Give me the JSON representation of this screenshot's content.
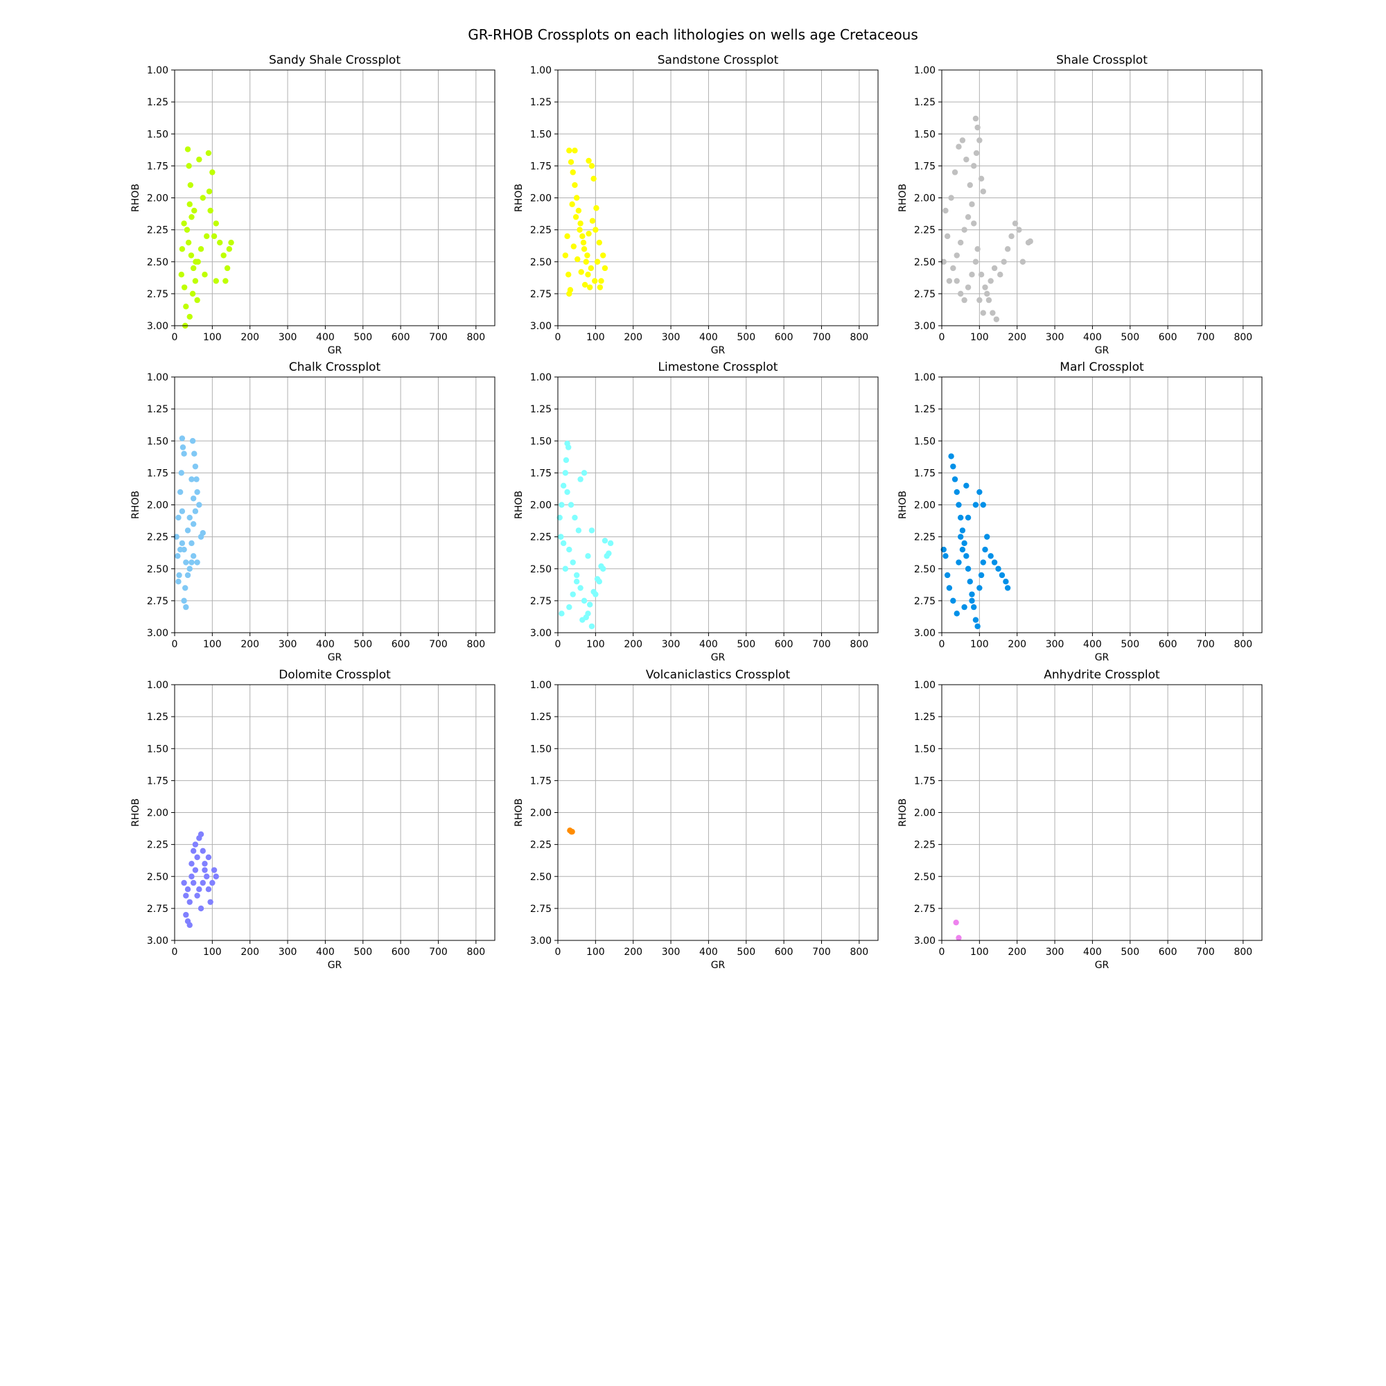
{
  "figure": {
    "title": "GR-RHOB Crossplots on each lithologies on wells age Cretaceous"
  },
  "axes_common": {
    "xlabel": "GR",
    "ylabel": "RHOB",
    "xlim": [
      0,
      850
    ],
    "ylim": [
      3.0,
      1.0
    ],
    "y_inverted": true,
    "xticks": [
      "0",
      "100",
      "200",
      "300",
      "400",
      "500",
      "600",
      "700",
      "800"
    ],
    "yticks": [
      "1.00",
      "1.25",
      "1.50",
      "1.75",
      "2.00",
      "2.25",
      "2.50",
      "2.75",
      "3.00"
    ],
    "grid": true
  },
  "chart_data": [
    {
      "type": "scatter",
      "title": "Sandy Shale Crossplot",
      "xlabel": "GR",
      "ylabel": "RHOB",
      "xlim": [
        0,
        850
      ],
      "ylim": [
        3.0,
        1.0
      ],
      "color": "#BFFF00",
      "x": [
        35,
        38,
        42,
        40,
        45,
        33,
        37,
        44,
        50,
        55,
        48,
        30,
        28,
        62,
        70,
        85,
        90,
        100,
        92,
        95,
        110,
        120,
        130,
        140,
        145,
        135,
        150,
        25,
        20,
        18,
        26,
        40,
        65,
        75,
        80,
        60,
        110,
        52,
        56,
        105
      ],
      "y": [
        1.62,
        1.75,
        1.9,
        2.05,
        2.15,
        2.25,
        2.35,
        2.45,
        2.55,
        2.65,
        2.75,
        2.85,
        3.0,
        2.5,
        2.4,
        2.3,
        1.65,
        1.8,
        1.95,
        2.1,
        2.2,
        2.35,
        2.45,
        2.55,
        2.4,
        2.65,
        2.35,
        2.2,
        2.4,
        2.6,
        2.7,
        2.93,
        1.7,
        2.0,
        2.6,
        2.8,
        2.65,
        2.1,
        2.5,
        2.3
      ]
    },
    {
      "type": "scatter",
      "title": "Sandstone Crossplot",
      "xlabel": "GR",
      "ylabel": "RHOB",
      "xlim": [
        0,
        850
      ],
      "ylim": [
        3.0,
        1.0
      ],
      "color": "#FFFF00",
      "x": [
        30,
        35,
        40,
        45,
        50,
        55,
        60,
        65,
        70,
        75,
        80,
        85,
        90,
        95,
        100,
        110,
        120,
        125,
        115,
        105,
        25,
        20,
        28,
        33,
        38,
        48,
        58,
        68,
        78,
        88,
        98,
        30,
        42,
        52,
        62,
        72,
        82,
        92,
        102,
        112,
        45,
        82
      ],
      "y": [
        1.63,
        1.72,
        1.8,
        1.9,
        2.0,
        2.1,
        2.2,
        2.3,
        2.4,
        2.5,
        2.6,
        2.7,
        1.75,
        1.85,
        2.25,
        2.35,
        2.45,
        2.55,
        2.65,
        2.5,
        2.3,
        2.45,
        2.6,
        2.72,
        2.05,
        2.15,
        2.25,
        2.35,
        2.45,
        2.55,
        2.65,
        2.75,
        2.38,
        2.48,
        2.58,
        2.68,
        2.28,
        2.18,
        2.08,
        2.7,
        1.63,
        1.71
      ]
    },
    {
      "type": "scatter",
      "title": "Shale Crossplot",
      "xlabel": "GR",
      "ylabel": "RHOB",
      "xlim": [
        0,
        850
      ],
      "ylim": [
        3.0,
        1.0
      ],
      "color": "#C0C0C0",
      "x": [
        90,
        95,
        100,
        92,
        85,
        105,
        110,
        80,
        70,
        60,
        50,
        40,
        30,
        20,
        10,
        5,
        15,
        25,
        35,
        45,
        55,
        65,
        75,
        85,
        95,
        105,
        115,
        125,
        135,
        145,
        155,
        165,
        175,
        185,
        195,
        205,
        215,
        230,
        235,
        100,
        110,
        120,
        130,
        140,
        90,
        80,
        70,
        60,
        50,
        40
      ],
      "y": [
        1.38,
        1.45,
        1.55,
        1.65,
        1.75,
        1.85,
        1.95,
        2.05,
        2.15,
        2.25,
        2.35,
        2.45,
        2.55,
        2.65,
        2.1,
        2.5,
        2.3,
        2.0,
        1.8,
        1.6,
        1.55,
        1.7,
        1.9,
        2.2,
        2.4,
        2.6,
        2.7,
        2.8,
        2.9,
        2.95,
        2.6,
        2.5,
        2.4,
        2.3,
        2.2,
        2.25,
        2.5,
        2.35,
        2.34,
        2.8,
        2.9,
        2.75,
        2.65,
        2.55,
        2.5,
        2.6,
        2.7,
        2.8,
        2.75,
        2.65
      ]
    },
    {
      "type": "scatter",
      "title": "Chalk Crossplot",
      "xlabel": "GR",
      "ylabel": "RHOB",
      "xlim": [
        0,
        850
      ],
      "ylim": [
        3.0,
        1.0
      ],
      "color": "#80C8F5",
      "x": [
        20,
        22,
        25,
        18,
        15,
        10,
        5,
        8,
        12,
        28,
        30,
        35,
        40,
        45,
        50,
        48,
        52,
        55,
        58,
        60,
        65,
        70,
        75,
        20,
        25,
        30,
        35,
        40,
        45,
        50,
        55,
        15,
        10,
        20,
        45,
        50,
        25,
        60
      ],
      "y": [
        1.48,
        1.55,
        1.6,
        1.75,
        1.9,
        2.1,
        2.25,
        2.4,
        2.55,
        2.65,
        2.8,
        2.2,
        2.1,
        2.3,
        2.4,
        1.5,
        1.6,
        1.7,
        1.8,
        1.9,
        2.0,
        2.25,
        2.22,
        2.3,
        2.35,
        2.45,
        2.55,
        2.5,
        2.45,
        2.15,
        2.05,
        2.35,
        2.6,
        2.05,
        1.8,
        1.95,
        2.75,
        2.45
      ]
    },
    {
      "type": "scatter",
      "title": "Limestone Crossplot",
      "xlabel": "GR",
      "ylabel": "RHOB",
      "xlim": [
        0,
        850
      ],
      "ylim": [
        3.0,
        1.0
      ],
      "color": "#80FFFF",
      "x": [
        25,
        28,
        22,
        20,
        15,
        10,
        5,
        8,
        30,
        40,
        50,
        60,
        70,
        80,
        90,
        100,
        110,
        120,
        130,
        140,
        135,
        125,
        115,
        105,
        95,
        85,
        75,
        65,
        55,
        45,
        35,
        25,
        15,
        10,
        60,
        70,
        80,
        50,
        40,
        30,
        20,
        90
      ],
      "y": [
        1.52,
        1.55,
        1.65,
        1.75,
        1.85,
        2.0,
        2.1,
        2.25,
        2.35,
        2.45,
        2.55,
        2.65,
        2.75,
        2.85,
        2.95,
        2.7,
        2.6,
        2.5,
        2.4,
        2.3,
        2.38,
        2.28,
        2.48,
        2.58,
        2.68,
        2.78,
        2.88,
        2.9,
        2.2,
        2.1,
        2.0,
        1.9,
        2.3,
        2.85,
        1.8,
        1.75,
        2.4,
        2.6,
        2.7,
        2.8,
        2.5,
        2.2
      ]
    },
    {
      "type": "scatter",
      "title": "Marl Crossplot",
      "xlabel": "GR",
      "ylabel": "RHOB",
      "xlim": [
        0,
        850
      ],
      "ylim": [
        3.0,
        1.0
      ],
      "color": "#0090E8",
      "x": [
        25,
        30,
        35,
        40,
        45,
        50,
        55,
        60,
        65,
        70,
        75,
        80,
        85,
        90,
        95,
        100,
        105,
        110,
        115,
        120,
        130,
        140,
        150,
        160,
        170,
        175,
        10,
        5,
        15,
        20,
        30,
        40,
        60,
        80,
        100,
        50,
        70,
        90,
        110,
        65,
        45,
        55
      ],
      "y": [
        1.62,
        1.7,
        1.8,
        1.9,
        2.0,
        2.1,
        2.2,
        2.3,
        2.4,
        2.5,
        2.6,
        2.7,
        2.8,
        2.9,
        2.95,
        2.65,
        2.55,
        2.45,
        2.35,
        2.25,
        2.4,
        2.45,
        2.5,
        2.55,
        2.6,
        2.65,
        2.4,
        2.35,
        2.55,
        2.65,
        2.75,
        2.85,
        2.8,
        2.75,
        1.9,
        2.25,
        2.1,
        2.0,
        2.0,
        1.85,
        2.45,
        2.35
      ]
    },
    {
      "type": "scatter",
      "title": "Dolomite Crossplot",
      "xlabel": "GR",
      "ylabel": "RHOB",
      "xlim": [
        0,
        850
      ],
      "ylim": [
        3.0,
        1.0
      ],
      "color": "#8080FF",
      "x": [
        25,
        30,
        35,
        40,
        45,
        50,
        55,
        60,
        65,
        70,
        75,
        80,
        85,
        90,
        95,
        100,
        105,
        110,
        35,
        40,
        50,
        60,
        70,
        80,
        90,
        30,
        45,
        55,
        65,
        75
      ],
      "y": [
        2.55,
        2.65,
        2.85,
        2.88,
        2.4,
        2.3,
        2.25,
        2.35,
        2.2,
        2.17,
        2.3,
        2.4,
        2.5,
        2.6,
        2.7,
        2.55,
        2.45,
        2.5,
        2.6,
        2.7,
        2.55,
        2.65,
        2.75,
        2.45,
        2.35,
        2.8,
        2.5,
        2.45,
        2.6,
        2.55
      ]
    },
    {
      "type": "scatter",
      "title": "Volcaniclastics Crossplot",
      "xlabel": "GR",
      "ylabel": "RHOB",
      "xlim": [
        0,
        850
      ],
      "ylim": [
        3.0,
        1.0
      ],
      "color": "#FF8C00",
      "x": [
        32,
        36,
        38
      ],
      "y": [
        2.14,
        2.15,
        2.15
      ]
    },
    {
      "type": "scatter",
      "title": "Anhydrite Crossplot",
      "xlabel": "GR",
      "ylabel": "RHOB",
      "xlim": [
        0,
        850
      ],
      "ylim": [
        3.0,
        1.0
      ],
      "color": "#EE82EE",
      "x": [
        38,
        45
      ],
      "y": [
        2.86,
        2.98
      ]
    }
  ]
}
